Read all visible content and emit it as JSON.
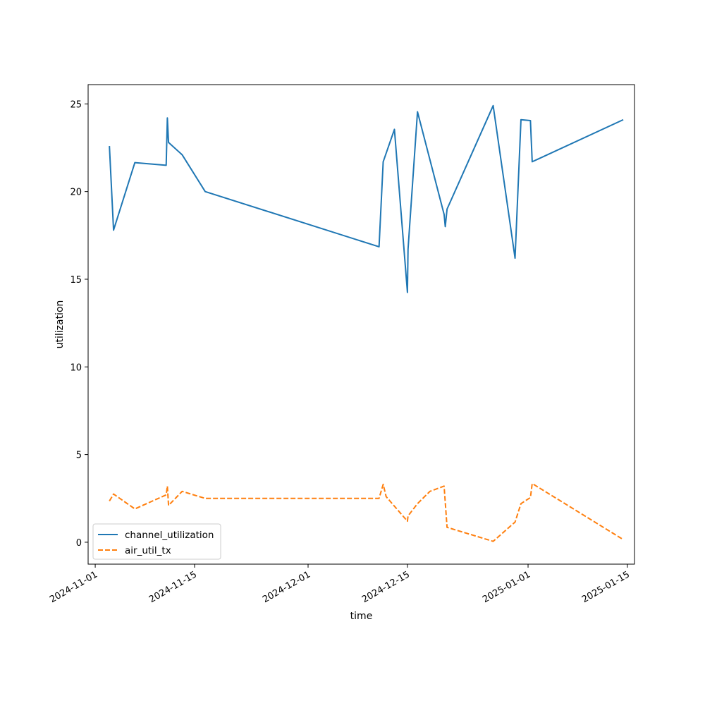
{
  "chart_data": {
    "type": "line",
    "title": "",
    "xlabel": "time",
    "ylabel": "utilization",
    "x_axis_type": "date",
    "xlim": [
      "2024-10-31",
      "2025-01-16"
    ],
    "ylim": [
      -1.25,
      26.1
    ],
    "grid": false,
    "legend_position": "lower-left",
    "x_ticks": [
      "2024-11-01",
      "2024-11-15",
      "2024-12-01",
      "2024-12-15",
      "2025-01-01",
      "2025-01-15"
    ],
    "y_ticks": [
      0,
      5,
      10,
      15,
      20,
      25
    ],
    "series": [
      {
        "name": "channel_utilization",
        "color": "#1f77b4",
        "linestyle": "solid",
        "points": [
          {
            "x": "2024-11-03 00:00",
            "y": 22.6
          },
          {
            "x": "2024-11-03 14:00",
            "y": 17.8
          },
          {
            "x": "2024-11-06 14:00",
            "y": 21.65
          },
          {
            "x": "2024-11-11 00:00",
            "y": 21.5
          },
          {
            "x": "2024-11-11 04:00",
            "y": 24.2
          },
          {
            "x": "2024-11-11 08:00",
            "y": 22.8
          },
          {
            "x": "2024-11-13 06:00",
            "y": 22.1
          },
          {
            "x": "2024-11-16 12:00",
            "y": 20.0
          },
          {
            "x": "2024-12-11 00:00",
            "y": 16.85
          },
          {
            "x": "2024-12-11 14:00",
            "y": 21.7
          },
          {
            "x": "2024-12-13 04:00",
            "y": 23.55
          },
          {
            "x": "2024-12-15 00:00",
            "y": 14.25
          },
          {
            "x": "2024-12-15 02:00",
            "y": 16.7
          },
          {
            "x": "2024-12-16 10:00",
            "y": 24.55
          },
          {
            "x": "2024-12-20 04:00",
            "y": 18.7
          },
          {
            "x": "2024-12-20 08:00",
            "y": 18.0
          },
          {
            "x": "2024-12-20 14:00",
            "y": 19.0
          },
          {
            "x": "2024-12-27 02:00",
            "y": 24.9
          },
          {
            "x": "2024-12-30 04:00",
            "y": 16.2
          },
          {
            "x": "2024-12-31 00:00",
            "y": 24.1
          },
          {
            "x": "2025-01-01 08:00",
            "y": 24.05
          },
          {
            "x": "2025-01-01 14:00",
            "y": 21.7
          },
          {
            "x": "2025-01-14 10:00",
            "y": 24.1
          }
        ]
      },
      {
        "name": "air_util_tx",
        "color": "#ff7f0e",
        "linestyle": "dashed",
        "points": [
          {
            "x": "2024-11-03 00:00",
            "y": 2.35
          },
          {
            "x": "2024-11-03 14:00",
            "y": 2.75
          },
          {
            "x": "2024-11-06 14:00",
            "y": 1.9
          },
          {
            "x": "2024-11-11 00:00",
            "y": 2.7
          },
          {
            "x": "2024-11-11 04:00",
            "y": 3.2
          },
          {
            "x": "2024-11-11 08:00",
            "y": 2.1
          },
          {
            "x": "2024-11-13 06:00",
            "y": 2.9
          },
          {
            "x": "2024-11-16 12:00",
            "y": 2.5
          },
          {
            "x": "2024-12-11 00:00",
            "y": 2.5
          },
          {
            "x": "2024-12-11 14:00",
            "y": 3.3
          },
          {
            "x": "2024-12-12 00:00",
            "y": 2.6
          },
          {
            "x": "2024-12-15 00:00",
            "y": 1.2
          },
          {
            "x": "2024-12-15 02:00",
            "y": 1.5
          },
          {
            "x": "2024-12-16 10:00",
            "y": 2.2
          },
          {
            "x": "2024-12-18 04:00",
            "y": 2.9
          },
          {
            "x": "2024-12-20 04:00",
            "y": 3.2
          },
          {
            "x": "2024-12-20 14:00",
            "y": 0.85
          },
          {
            "x": "2024-12-27 02:00",
            "y": 0.05
          },
          {
            "x": "2024-12-30 04:00",
            "y": 1.15
          },
          {
            "x": "2024-12-31 00:00",
            "y": 2.2
          },
          {
            "x": "2025-01-01 08:00",
            "y": 2.55
          },
          {
            "x": "2025-01-01 14:00",
            "y": 3.35
          },
          {
            "x": "2025-01-14 10:00",
            "y": 0.15
          }
        ]
      }
    ]
  }
}
